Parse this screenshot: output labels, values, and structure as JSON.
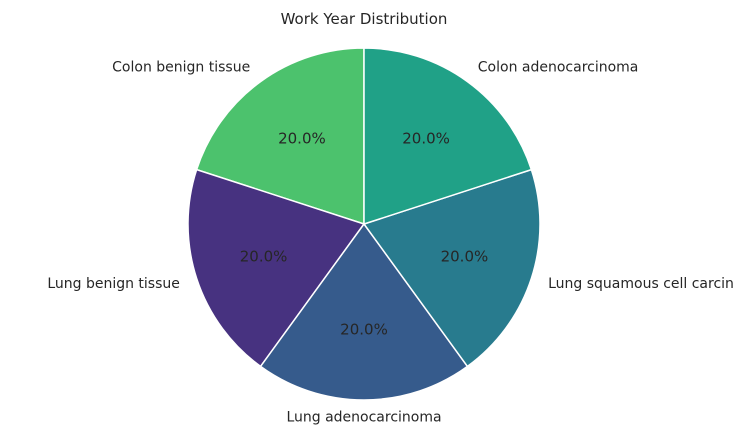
{
  "chart_data": {
    "type": "pie",
    "title": "Work Year Distribution",
    "categories": [
      "Colon benign tissue",
      "Lung benign tissue",
      "Lung adenocarcinoma",
      "Lung squamous cell carcinoma",
      "Colon adenocarcinoma"
    ],
    "values": [
      20.0,
      20.0,
      20.0,
      20.0,
      20.0
    ],
    "percent_labels": [
      "20.0%",
      "20.0%",
      "20.0%",
      "20.0%",
      "20.0%"
    ],
    "colors": [
      "#4cc26d",
      "#473280",
      "#365b8c",
      "#287b8e",
      "#20a187"
    ],
    "start_angle_deg": 90,
    "direction": "counterclockwise",
    "edge_color": "#ffffff",
    "legend": "none"
  }
}
